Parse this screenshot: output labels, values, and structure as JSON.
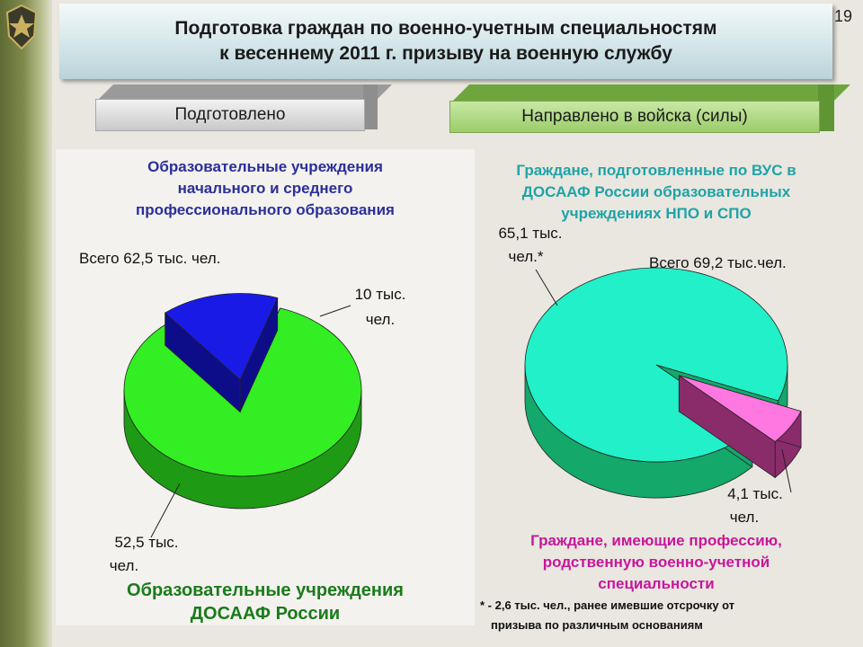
{
  "slide_number": "19",
  "title": {
    "line1": "Подготовка граждан по военно-учетным специальностям",
    "line2": "к весеннему 2011 г. призыву на военную службу"
  },
  "buttons": {
    "left": "Подготовлено",
    "right": "Направлено в войска (силы)"
  },
  "left_panel": {
    "heading_line1": "Образовательные учреждения",
    "heading_line2": "начального и среднего",
    "heading_line3": "профессионального образования",
    "total": "Всего 62,5 тыс. чел.",
    "slice_small_line1": "10 тыс.",
    "slice_small_line2": "чел.",
    "slice_big_line1": "52,5 тыс.",
    "slice_big_line2": "чел.",
    "footer_line1": "Образовательные учреждения",
    "footer_line2": "ДОСААФ России"
  },
  "right_panel": {
    "heading_line1": "Граждане, подготовленные по ВУС в",
    "heading_line2": "ДОСААФ России образовательных",
    "heading_line3": "учреждениях НПО и СПО",
    "slice_big_line1": "65,1 тыс.",
    "slice_big_line2": "чел.*",
    "total": "Всего  69,2 тыс.чел.",
    "slice_small_line1": "4,1  тыс.",
    "slice_small_line2": "чел.",
    "pink_line1": "Граждане, имеющие профессию,",
    "pink_line2": "родственную военно-учетной",
    "pink_line3": "специальности",
    "note_line1": "* - 2,6 тыс. чел., ранее имевшие отсрочку от",
    "note_line2": "призыва по различным основаниям"
  },
  "chart_data": [
    {
      "type": "pie",
      "slices": [
        {
          "label": "52,5 тыс. чел.",
          "value": 52.5,
          "color": "#33ee22",
          "side_color": "#1f9a14",
          "exploded": false
        },
        {
          "label": "10 тыс. чел.",
          "value": 10,
          "color": "#1a1ae6",
          "side_color": "#0d0d8a",
          "exploded": true
        }
      ],
      "total_label": "Всего 62,5 тыс. чел."
    },
    {
      "type": "pie",
      "slices": [
        {
          "label": "65,1 тыс. чел.*",
          "value": 65.1,
          "color": "#22f0c8",
          "side_color": "#14a86a",
          "exploded": false
        },
        {
          "label": "4,1 тыс. чел.",
          "value": 4.1,
          "color": "#ff77e0",
          "side_color": "#8a2b6a",
          "exploded": true
        }
      ],
      "total_label": "Всего 69,2 тыс.чел."
    }
  ]
}
